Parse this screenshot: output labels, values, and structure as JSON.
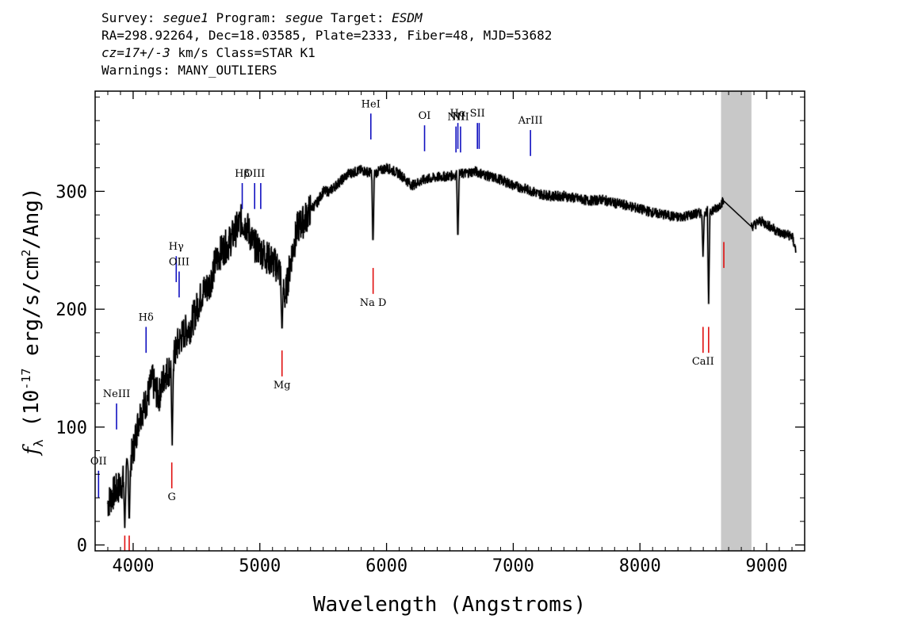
{
  "header": {
    "survey_label": "Survey:",
    "survey": "segue1",
    "program_label": "Program:",
    "program": "segue",
    "target_label": "Target:",
    "target": "ESDM",
    "line2": "RA=298.92264, Dec=18.03585, Plate=2333, Fiber=48, MJD=53682",
    "cz": "cz=17+/-3",
    "cz_units": "km/s",
    "class_text": "Class=STAR K1",
    "warnings": "Warnings: MANY_OUTLIERS"
  },
  "chart_data": {
    "type": "line",
    "title": "",
    "xlabel": "Wavelength (Angstroms)",
    "ylabel": "f_λ (10^-17 erg/s/cm^2/Ang)",
    "xlim": [
      3700,
      9300
    ],
    "ylim": [
      -5,
      385
    ],
    "xticks": [
      4000,
      5000,
      6000,
      7000,
      8000,
      9000
    ],
    "yticks": [
      0,
      100,
      200,
      300
    ],
    "masked_region": [
      8640,
      8880
    ],
    "colors": {
      "emission": "#1010c0",
      "absorption": "#e01010",
      "spectrum": "#000000",
      "mask": "#c8c8c8"
    },
    "spectrum": {
      "x": [
        3800,
        3850,
        3900,
        3950,
        4000,
        4050,
        4100,
        4150,
        4200,
        4250,
        4300,
        4350,
        4400,
        4450,
        4500,
        4550,
        4600,
        4650,
        4700,
        4750,
        4800,
        4850,
        4900,
        4950,
        5000,
        5050,
        5100,
        5150,
        5200,
        5250,
        5300,
        5350,
        5400,
        5450,
        5500,
        5550,
        5600,
        5650,
        5700,
        5800,
        5900,
        6000,
        6100,
        6200,
        6300,
        6400,
        6500,
        6600,
        6700,
        6800,
        6900,
        7000,
        7100,
        7200,
        7300,
        7400,
        7500,
        7600,
        7700,
        7800,
        7900,
        8000,
        8100,
        8200,
        8300,
        8400,
        8500,
        8600,
        8660,
        8880,
        8950,
        9000,
        9100,
        9200,
        9230
      ],
      "y": [
        35,
        45,
        50,
        60,
        80,
        110,
        120,
        140,
        125,
        145,
        150,
        170,
        180,
        185,
        200,
        215,
        220,
        240,
        250,
        255,
        265,
        275,
        270,
        255,
        250,
        245,
        240,
        235,
        210,
        245,
        270,
        275,
        285,
        290,
        300,
        300,
        305,
        310,
        315,
        318,
        315,
        320,
        315,
        305,
        310,
        312,
        313,
        315,
        317,
        313,
        310,
        305,
        302,
        298,
        296,
        296,
        294,
        292,
        293,
        290,
        288,
        285,
        282,
        280,
        278,
        280,
        282,
        285,
        292,
        270,
        275,
        272,
        265,
        262,
        250
      ]
    },
    "dips": [
      {
        "x": 3934,
        "y": 15
      },
      {
        "x": 3969,
        "y": 18
      },
      {
        "x": 4308,
        "y": 85
      },
      {
        "x": 5175,
        "y": 180
      },
      {
        "x": 5893,
        "y": 253
      },
      {
        "x": 6563,
        "y": 258
      },
      {
        "x": 8498,
        "y": 245
      },
      {
        "x": 8542,
        "y": 205
      }
    ],
    "emission_lines": [
      {
        "label": "OII",
        "x": 3727,
        "y_top": 63,
        "y_bot": 40
      },
      {
        "label": "NeIII",
        "x": 3869,
        "y_top": 120,
        "y_bot": 98
      },
      {
        "label": "Hδ",
        "x": 4102,
        "y_top": 185,
        "y_bot": 163
      },
      {
        "label": "Hγ",
        "x": 4340,
        "y_top": 245,
        "y_bot": 223
      },
      {
        "label": "OIII",
        "x": 4363,
        "y_top": 232,
        "y_bot": 210
      },
      {
        "label": "Hβ",
        "x": 4861,
        "y_top": 307,
        "y_bot": 285
      },
      {
        "label": "OIII",
        "x": 4959,
        "y_top": 307,
        "y_bot": 285
      },
      {
        "label": "",
        "x": 5007,
        "y_top": 307,
        "y_bot": 285
      },
      {
        "label": "HeI",
        "x": 5876,
        "y_top": 366,
        "y_bot": 344
      },
      {
        "label": "OI",
        "x": 6300,
        "y_top": 356,
        "y_bot": 334
      },
      {
        "label": "NII",
        "x": 6548,
        "y_top": 355,
        "y_bot": 333
      },
      {
        "label": "Hα",
        "x": 6563,
        "y_top": 358,
        "y_bot": 336
      },
      {
        "label": "NII",
        "x": 6584,
        "y_top": 355,
        "y_bot": 333
      },
      {
        "label": "SII",
        "x": 6717,
        "y_top": 358,
        "y_bot": 336
      },
      {
        "label": "",
        "x": 6731,
        "y_top": 358,
        "y_bot": 336
      },
      {
        "label": "ArIII",
        "x": 7136,
        "y_top": 352,
        "y_bot": 330
      }
    ],
    "absorption_lines": [
      {
        "label": "",
        "x": 3934,
        "y_top": 8,
        "y_bot": -5
      },
      {
        "label": "",
        "x": 3969,
        "y_top": 8,
        "y_bot": -5
      },
      {
        "label": "G",
        "x": 4305,
        "y_top": 70,
        "y_bot": 48
      },
      {
        "label": "Mg",
        "x": 5175,
        "y_top": 165,
        "y_bot": 143
      },
      {
        "label": "Na D",
        "x": 5894,
        "y_top": 235,
        "y_bot": 213
      },
      {
        "label": "CaII",
        "x": 8498,
        "y_top": 185,
        "y_bot": 163
      },
      {
        "label": "",
        "x": 8542,
        "y_top": 185,
        "y_bot": 163
      },
      {
        "label": "",
        "x": 8662,
        "y_top": 257,
        "y_bot": 235
      }
    ]
  }
}
